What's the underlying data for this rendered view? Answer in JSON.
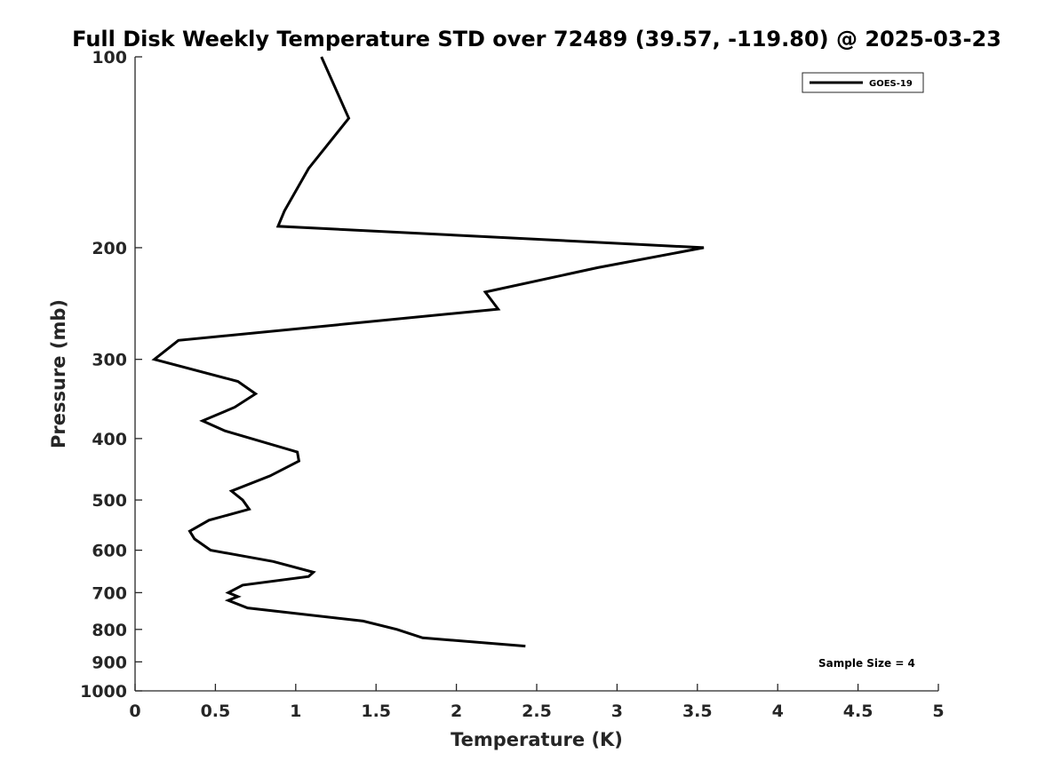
{
  "chart_data": {
    "type": "line",
    "title": "Full Disk Weekly Temperature STD over 72489 (39.57, -119.80) @ 2025-03-23",
    "xlabel": "Temperature (K)",
    "ylabel": "Pressure (mb)",
    "xlim": [
      0,
      5
    ],
    "ylim": [
      100,
      1000
    ],
    "y_scale": "log",
    "y_reversed": true,
    "x_ticks": [
      "0",
      "0.5",
      "1",
      "1.5",
      "2",
      "2.5",
      "3",
      "3.5",
      "4",
      "4.5",
      "5"
    ],
    "y_ticks": [
      "100",
      "200",
      "300",
      "400",
      "500",
      "600",
      "700",
      "800",
      "900",
      "1000"
    ],
    "grid": false,
    "legend_position": "top-right",
    "series": [
      {
        "name": "GOES-19",
        "color": "#000000",
        "points": [
          [
            1.16,
            100
          ],
          [
            1.33,
            125
          ],
          [
            1.08,
            150
          ],
          [
            0.93,
            175
          ],
          [
            0.89,
            185
          ],
          [
            3.54,
            200
          ],
          [
            2.88,
            215
          ],
          [
            2.18,
            235
          ],
          [
            2.26,
            250
          ],
          [
            0.27,
            280
          ],
          [
            0.12,
            300
          ],
          [
            0.64,
            325
          ],
          [
            0.75,
            340
          ],
          [
            0.62,
            357
          ],
          [
            0.42,
            375
          ],
          [
            0.56,
            389
          ],
          [
            1.01,
            420
          ],
          [
            1.02,
            434
          ],
          [
            0.84,
            458
          ],
          [
            0.6,
            484
          ],
          [
            0.67,
            500
          ],
          [
            0.71,
            517
          ],
          [
            0.46,
            538
          ],
          [
            0.34,
            560
          ],
          [
            0.37,
            576
          ],
          [
            0.47,
            600
          ],
          [
            0.86,
            625
          ],
          [
            1.11,
            650
          ],
          [
            1.08,
            660
          ],
          [
            0.67,
            681
          ],
          [
            0.58,
            700
          ],
          [
            0.64,
            710
          ],
          [
            0.58,
            720
          ],
          [
            0.7,
            740
          ],
          [
            1.42,
            776
          ],
          [
            1.63,
            800
          ],
          [
            1.79,
            825
          ],
          [
            2.43,
            850
          ]
        ]
      }
    ],
    "annotation": "Sample Size = 4"
  }
}
